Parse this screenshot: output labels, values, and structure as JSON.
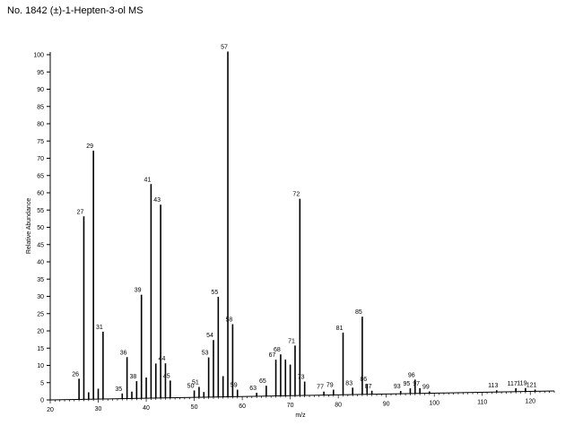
{
  "title": "No. 1842 (±)-1-Hepten-3-ol MS",
  "chart_data": {
    "type": "bar",
    "title": "No. 1842 (±)-1-Hepten-3-ol MS",
    "xlabel": "m/z",
    "ylabel": "Relative Abundance",
    "xlim": [
      20,
      125
    ],
    "ylim": [
      0,
      100
    ],
    "x_ticks": [
      20,
      30,
      40,
      50,
      60,
      70,
      80,
      90,
      100,
      110,
      120
    ],
    "y_ticks": [
      0,
      5,
      10,
      15,
      20,
      25,
      30,
      35,
      40,
      45,
      50,
      55,
      60,
      65,
      70,
      75,
      80,
      85,
      90,
      95,
      100
    ],
    "grid": false,
    "peaks": [
      {
        "mz": 26,
        "value": 6,
        "label": "26"
      },
      {
        "mz": 27,
        "value": 53,
        "label": "27"
      },
      {
        "mz": 28,
        "value": 2,
        "label": ""
      },
      {
        "mz": 29,
        "value": 72,
        "label": "29"
      },
      {
        "mz": 30,
        "value": 3,
        "label": ""
      },
      {
        "mz": 31,
        "value": 19.5,
        "label": "31"
      },
      {
        "mz": 35,
        "value": 1.5,
        "label": "35"
      },
      {
        "mz": 36,
        "value": 12,
        "label": "36"
      },
      {
        "mz": 37,
        "value": 2,
        "label": ""
      },
      {
        "mz": 38,
        "value": 5,
        "label": "38"
      },
      {
        "mz": 39,
        "value": 30,
        "label": "39"
      },
      {
        "mz": 40,
        "value": 6,
        "label": ""
      },
      {
        "mz": 41,
        "value": 62,
        "label": "41"
      },
      {
        "mz": 42,
        "value": 10,
        "label": ""
      },
      {
        "mz": 43,
        "value": 56,
        "label": "43"
      },
      {
        "mz": 44,
        "value": 10,
        "label": "44"
      },
      {
        "mz": 45,
        "value": 5,
        "label": "45"
      },
      {
        "mz": 50,
        "value": 2,
        "label": "50"
      },
      {
        "mz": 51,
        "value": 3,
        "label": "51"
      },
      {
        "mz": 52,
        "value": 1.5,
        "label": ""
      },
      {
        "mz": 53,
        "value": 11.5,
        "label": "53"
      },
      {
        "mz": 54,
        "value": 16.5,
        "label": "54"
      },
      {
        "mz": 55,
        "value": 29,
        "label": "55"
      },
      {
        "mz": 56,
        "value": 6,
        "label": ""
      },
      {
        "mz": 57,
        "value": 100,
        "label": "57"
      },
      {
        "mz": 58,
        "value": 21,
        "label": "58"
      },
      {
        "mz": 59,
        "value": 2,
        "label": "59"
      },
      {
        "mz": 63,
        "value": 1,
        "label": "63"
      },
      {
        "mz": 65,
        "value": 3,
        "label": "65"
      },
      {
        "mz": 67,
        "value": 10.5,
        "label": "67"
      },
      {
        "mz": 68,
        "value": 12,
        "label": "68"
      },
      {
        "mz": 69,
        "value": 10.5,
        "label": ""
      },
      {
        "mz": 70,
        "value": 9,
        "label": ""
      },
      {
        "mz": 71,
        "value": 14.5,
        "label": "71"
      },
      {
        "mz": 72,
        "value": 57,
        "label": "72"
      },
      {
        "mz": 73,
        "value": 4,
        "label": "73"
      },
      {
        "mz": 77,
        "value": 1,
        "label": "77"
      },
      {
        "mz": 79,
        "value": 1.5,
        "label": "79"
      },
      {
        "mz": 81,
        "value": 18,
        "label": "81"
      },
      {
        "mz": 83,
        "value": 2,
        "label": "83"
      },
      {
        "mz": 85,
        "value": 22.5,
        "label": "85"
      },
      {
        "mz": 86,
        "value": 3,
        "label": "86"
      },
      {
        "mz": 87,
        "value": 1,
        "label": "87"
      },
      {
        "mz": 93,
        "value": 0.8,
        "label": "93"
      },
      {
        "mz": 95,
        "value": 1.5,
        "label": "95"
      },
      {
        "mz": 96,
        "value": 4,
        "label": "96"
      },
      {
        "mz": 97,
        "value": 1.5,
        "label": "97"
      },
      {
        "mz": 99,
        "value": 0.5,
        "label": "99"
      },
      {
        "mz": 113,
        "value": 0.5,
        "label": "113"
      },
      {
        "mz": 117,
        "value": 1,
        "label": "117"
      },
      {
        "mz": 119,
        "value": 1,
        "label": "119"
      },
      {
        "mz": 121,
        "value": 0.5,
        "label": "121"
      }
    ]
  }
}
